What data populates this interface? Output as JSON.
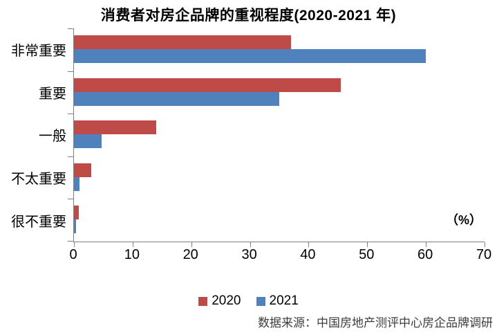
{
  "page": {
    "background": "#ffffff"
  },
  "chart_data": {
    "type": "bar",
    "orientation": "horizontal",
    "title": "消费者对房企品牌的重视程度(2020-2021 年)",
    "categories": [
      "非常重要",
      "重要",
      "一般",
      "不太重要",
      "很不重要"
    ],
    "series": [
      {
        "name": "2020",
        "color": "#BE4B48",
        "values": [
          37,
          45.5,
          14,
          2.9,
          0.8
        ]
      },
      {
        "name": "2021",
        "color": "#4F81BD",
        "values": [
          60,
          35,
          4.7,
          0.9,
          0.3
        ]
      }
    ],
    "xlim": [
      0,
      70
    ],
    "x_ticks": [
      0,
      10,
      20,
      30,
      40,
      50,
      60,
      70
    ],
    "unit_label": "（%）",
    "grid": false,
    "legend_position": "bottom",
    "axis_color": "#7f7f7f",
    "source_note": "数据来源：中国房地产测评中心房企品牌调研"
  }
}
